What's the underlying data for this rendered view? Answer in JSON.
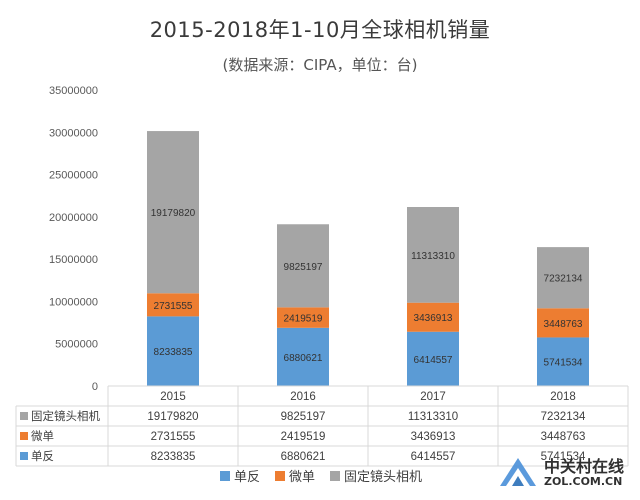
{
  "watermark": {
    "cn": "中关村在线",
    "en": "ZOL.COM.CN"
  },
  "chart_data": {
    "type": "bar",
    "stacked": true,
    "title": "2015-2018年1-10月全球相机销量",
    "subtitle": "(数据来源：CIPA，单位：台)",
    "categories": [
      "2015",
      "2016",
      "2017",
      "2018"
    ],
    "series": [
      {
        "name": "单反",
        "values": [
          8233835,
          6880621,
          6414557,
          5741534
        ],
        "color": "#5b9bd5"
      },
      {
        "name": "微单",
        "values": [
          2731555,
          2419519,
          3436913,
          3448763
        ],
        "color": "#ed7d31"
      },
      {
        "name": "固定镜头相机",
        "values": [
          19179820,
          9825197,
          11313310,
          7232134
        ],
        "color": "#a5a5a5"
      }
    ],
    "yticks": [
      "0",
      "5000000",
      "10000000",
      "15000000",
      "20000000",
      "25000000",
      "30000000",
      "35000000"
    ],
    "ylim": [
      0,
      35000000
    ],
    "grid": false,
    "data_table": true,
    "legend": "bottom"
  }
}
